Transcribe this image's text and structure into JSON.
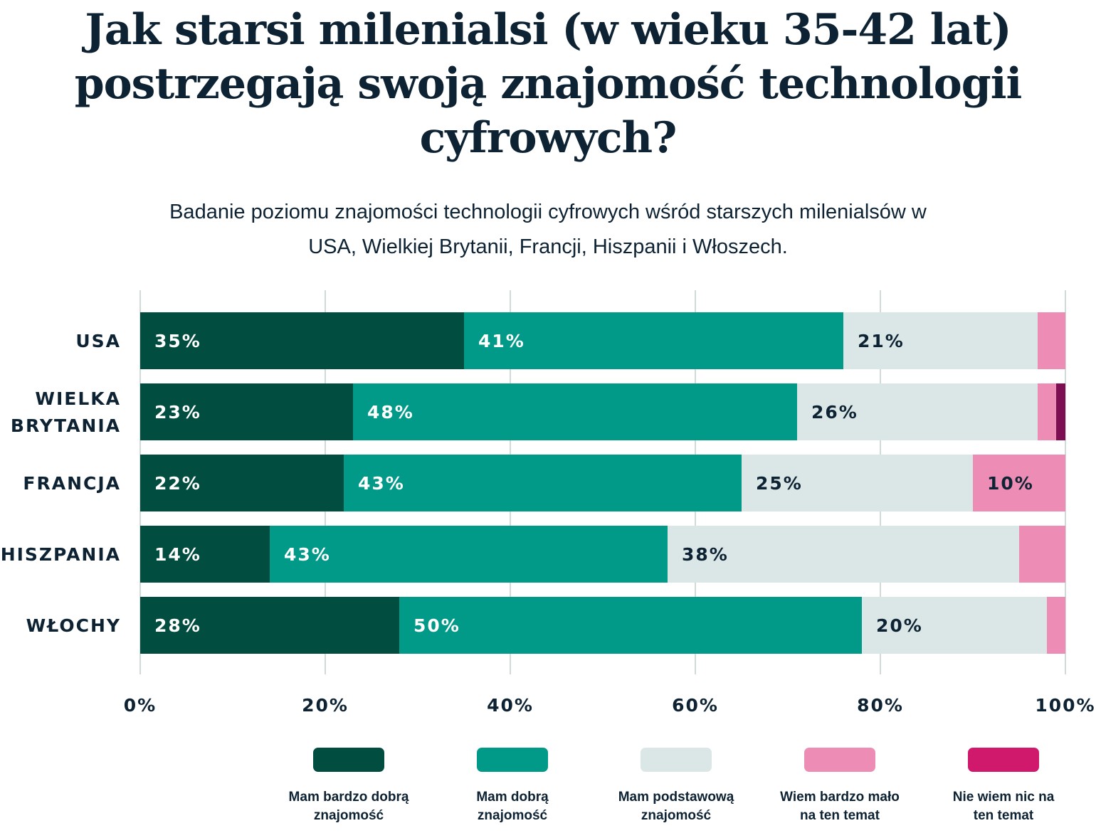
{
  "chart_data": {
    "type": "bar",
    "orientation": "horizontal",
    "stacked": true,
    "title": "Jak starsi milenialsi (w wieku 35-42 lat) postrzegają swoją znajomość technologii cyfrowych?",
    "subtitle": "Badanie poziomu znajomości technologii cyfrowych wśród starszych milenialsów w USA, Wielkiej Brytanii, Francji, Hiszpanii i Włoszech.",
    "categories": [
      [
        "USA"
      ],
      [
        "WIELKA",
        "BRYTANIA"
      ],
      [
        "FRANCJA"
      ],
      [
        "HISZPANIA"
      ],
      [
        "WŁOCHY"
      ]
    ],
    "series": [
      {
        "name": "Mam bardzo dobrą znajomość",
        "legend_lines": [
          "Mam bardzo dobrą",
          "znajomość"
        ],
        "color": "#014d40",
        "label_color": "#ffffff",
        "values": [
          35,
          23,
          22,
          14,
          28
        ],
        "labels": [
          "35%",
          "23%",
          "22%",
          "14%",
          "28%"
        ]
      },
      {
        "name": "Mam dobrą znajomość",
        "legend_lines": [
          "Mam dobrą",
          "znajomość"
        ],
        "color": "#019a88",
        "label_color": "#ffffff",
        "values": [
          41,
          48,
          43,
          43,
          50
        ],
        "labels": [
          "41%",
          "48%",
          "43%",
          "43%",
          "50%"
        ]
      },
      {
        "name": "Mam podstawową znajomość",
        "legend_lines": [
          "Mam podstawową",
          "znajomość"
        ],
        "color": "#dbe7e6",
        "label_color": "#0d2233",
        "values": [
          21,
          26,
          25,
          38,
          20
        ],
        "labels": [
          "21%",
          "26%",
          "25%",
          "38%",
          "20%"
        ]
      },
      {
        "name": "Wiem bardzo mało na ten temat",
        "legend_lines": [
          "Wiem bardzo mało",
          "na ten temat"
        ],
        "color": "#ed8db5",
        "label_color": "#0d2233",
        "values": [
          3,
          2,
          10,
          5,
          2
        ],
        "labels": [
          "",
          "",
          "10%",
          "",
          ""
        ]
      },
      {
        "name": "Nie wiem nic na ten temat",
        "legend_lines": [
          "Nie wiem nic na",
          "ten temat"
        ],
        "color": "#7d0e52",
        "legend_color": "#d0186c",
        "label_color": "#ffffff",
        "values": [
          0,
          1,
          0,
          0,
          0
        ],
        "labels": [
          "",
          "",
          "",
          "",
          ""
        ]
      }
    ],
    "xlim": [
      0,
      100
    ],
    "xticks": [
      "0%",
      "20%",
      "40%",
      "60%",
      "80%",
      "100%"
    ],
    "grid": true,
    "legend": "bottom"
  }
}
